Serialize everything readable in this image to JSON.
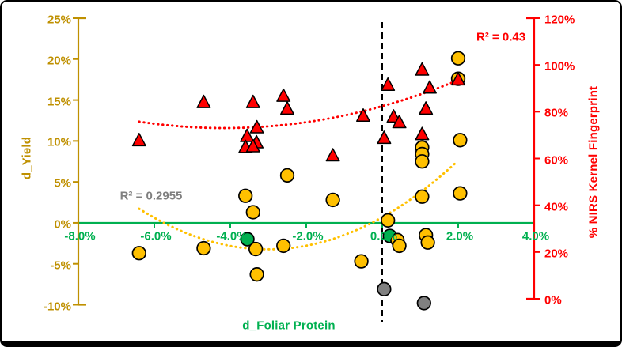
{
  "chart_data": {
    "type": "scatter",
    "title": "",
    "xlabel": "d_Foliar Protein",
    "ylabel_left": "d_Yield",
    "ylabel_right": "% NIRS Kernel Fingerprint",
    "grid": false,
    "x_axis": {
      "min": -8,
      "max": 4,
      "color": "#00B050",
      "ticks": [
        {
          "value": -8,
          "label": "-8.0%"
        },
        {
          "value": -6,
          "label": "-6.0%"
        },
        {
          "value": -4,
          "label": "-4.0%"
        },
        {
          "value": -2,
          "label": "-2.0%"
        },
        {
          "value": 0,
          "label": "0.0%"
        },
        {
          "value": 2,
          "label": "2.0%"
        },
        {
          "value": 4,
          "label": "4.0%"
        }
      ]
    },
    "y_axis_left": {
      "min": -10,
      "max": 25,
      "color": "#BF9000",
      "ticks": [
        {
          "value": 25,
          "label": "25%"
        },
        {
          "value": 20,
          "label": "20%"
        },
        {
          "value": 15,
          "label": "15%"
        },
        {
          "value": 10,
          "label": "10%"
        },
        {
          "value": 5,
          "label": "5%"
        },
        {
          "value": 0,
          "label": "0%"
        },
        {
          "value": -5,
          "label": "-5%"
        },
        {
          "value": -10,
          "label": "-10%"
        }
      ]
    },
    "y_axis_right": {
      "min": 0,
      "max": 120,
      "color": "#FF0000",
      "ticks": [
        {
          "value": 120,
          "label": "120%"
        },
        {
          "value": 100,
          "label": "100%"
        },
        {
          "value": 80,
          "label": "80%"
        },
        {
          "value": 60,
          "label": "60%"
        },
        {
          "value": 40,
          "label": "40%"
        },
        {
          "value": 20,
          "label": "20%"
        },
        {
          "value": 0,
          "label": "0%"
        }
      ]
    },
    "series": [
      {
        "id": "nirs",
        "name": "% NIRS Kernel Fingerprint",
        "marker": "triangle",
        "axis": "right",
        "fill": "#FF0000",
        "stroke": "#000000",
        "points": [
          [
            -6.4,
            67.5
          ],
          [
            -4.7,
            83.8
          ],
          [
            -3.4,
            83.8
          ],
          [
            -2.6,
            86.5
          ],
          [
            -2.5,
            81.0
          ],
          [
            -3.3,
            73.0
          ],
          [
            -3.56,
            69.3
          ],
          [
            -3.31,
            66.6
          ],
          [
            -3.6,
            64.6
          ],
          [
            -3.4,
            64.9
          ],
          [
            -1.3,
            61.0
          ],
          [
            -0.5,
            78.0
          ],
          [
            0.15,
            91.2
          ],
          [
            0.3,
            77.6
          ],
          [
            0.45,
            75.2
          ],
          [
            0.05,
            68.5
          ],
          [
            1.05,
            97.7
          ],
          [
            1.25,
            90.0
          ],
          [
            1.15,
            81.0
          ],
          [
            1.05,
            70.1
          ],
          [
            2.0,
            93.5
          ]
        ]
      },
      {
        "id": "yield",
        "name": "d_Yield",
        "marker": "circle",
        "axis": "left",
        "fill": "#FFC000",
        "stroke": "#000000",
        "points": [
          [
            -6.4,
            -3.7
          ],
          [
            -4.7,
            -3.1
          ],
          [
            -3.6,
            3.3
          ],
          [
            -3.4,
            1.3
          ],
          [
            -3.33,
            -3.2
          ],
          [
            -2.6,
            -2.8
          ],
          [
            -3.3,
            -6.3
          ],
          [
            -2.5,
            5.8
          ],
          [
            -1.3,
            2.8
          ],
          [
            -0.55,
            -4.7
          ],
          [
            0.15,
            0.3
          ],
          [
            0.4,
            -2.1
          ],
          [
            0.45,
            -2.8
          ],
          [
            1.15,
            -1.5
          ],
          [
            1.2,
            -2.4
          ],
          [
            1.05,
            9.2
          ],
          [
            1.05,
            8.4
          ],
          [
            1.05,
            7.5
          ],
          [
            1.05,
            3.2
          ],
          [
            2.05,
            3.6
          ],
          [
            2.05,
            10.1
          ],
          [
            2.0,
            17.6
          ],
          [
            2.0,
            20.1
          ]
        ]
      },
      {
        "id": "gray-outliers",
        "name": "gray-outliers",
        "marker": "circle",
        "axis": "left",
        "fill": "#808080",
        "stroke": "#000000",
        "points": [
          [
            0.05,
            -8.1
          ],
          [
            1.1,
            -9.8
          ]
        ]
      },
      {
        "id": "green-highlight",
        "name": "green-highlight",
        "marker": "circle",
        "axis": "left",
        "fill": "#00B050",
        "stroke": "#000000",
        "points": [
          [
            -3.55,
            -2.0
          ],
          [
            0.2,
            -1.6
          ]
        ]
      }
    ],
    "trendlines": [
      {
        "series": "yield",
        "axis": "left",
        "style": "dotted",
        "color": "#FFC000",
        "poly_abc": [
          0.4318,
          2.601,
          0.68
        ],
        "domain": [
          -6.4,
          1.96
        ]
      },
      {
        "series": "nirs",
        "axis": "right",
        "style": "dotted",
        "color": "#FF0000",
        "poly_abc": [
          0.5406,
          4.493,
          82.35
        ],
        "domain": [
          -6.4,
          2.0
        ]
      }
    ],
    "reference_line": {
      "x": 0,
      "style": "dashed",
      "color": "#000000"
    },
    "annotations": [
      {
        "id": "r2-nirs",
        "text": "R² = 0.43",
        "color": "#FF0000"
      },
      {
        "id": "r2-yield",
        "text": "R² = 0.2955",
        "color": "#7F7F7F"
      }
    ]
  }
}
